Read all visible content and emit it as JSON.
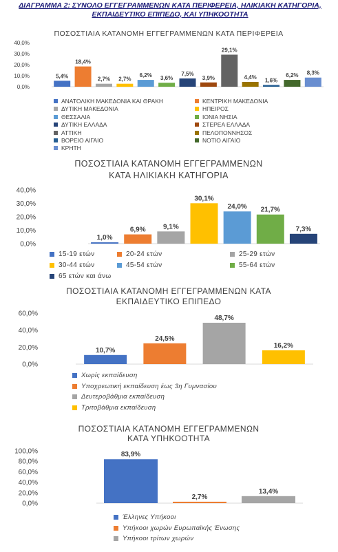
{
  "page": {
    "title": "ΔΙΑΓΡΑΜΜΑ 2: ΣΥΝΟΛΟ ΕΓΓΕΓΡΑΜΜΕΝΩΝ ΚΑΤΑ ΠΕΡΙΦΕΡΕΙΑ, ΗΛΙΚΙΑΚΗ ΚΑΤΗΓΟΡΙΑ, ΕΚΠΑΙΔΕΥΤΙΚΟ ΕΠΙΠΕΔΟ, ΚΑΙ ΥΠΗΚΟΟΤΗΤΑ"
  },
  "chart_data": [
    {
      "id": "region",
      "type": "bar",
      "title": "ΠΟΣΟΣΤΙΑΙΑ ΚΑΤΑΝΟΜΗ ΕΓΓΕΓΡΑΜΜΕΝΩΝ ΚΑΤΑ ΠΕΡΙΦΕΡΕΙΑ",
      "categories": [
        "ΑΝΑΤΟΛΙΚΗ ΜΑΚΕΔΟΝΙΑ ΚΑΙ ΘΡΑΚΗ",
        "ΚΕΝΤΡΙΚΗ ΜΑΚΕΔΟΝΙΑ",
        "ΔΥΤΙΚΗ ΜΑΚΕΔΟΝΙΑ",
        "ΗΠΕΙΡΟΣ",
        "ΘΕΣΣΑΛΙΑ",
        "ΙΟΝΙΑ ΝΗΣΙΑ",
        "ΔΥΤΙΚΗ ΕΛΛΑΔΑ",
        "ΣΤΕΡΕΑ ΕΛΛΑΔΑ",
        "ΑΤΤΙΚΗ",
        "ΠΕΛΟΠΟΝΝΗΣΟΣ",
        "ΒΟΡΕΙΟ ΑΙΓΑΙΟ",
        "ΝΟΤΙΟ ΑΙΓΑΙΟ",
        "ΚΡΗΤΗ"
      ],
      "values": [
        5.4,
        18.4,
        2.7,
        2.7,
        6.2,
        3.6,
        7.5,
        3.9,
        29.1,
        4.4,
        1.6,
        6.2,
        8.3
      ],
      "value_labels": [
        "5,4%",
        "18,4%",
        "2,7%",
        "2,7%",
        "6,2%",
        "3,6%",
        "7,5%",
        "3,9%",
        "29,1%",
        "4,4%",
        "1,6%",
        "6,2%",
        "8,3%"
      ],
      "colors": [
        "#4472c4",
        "#ed7d31",
        "#a5a5a5",
        "#ffc000",
        "#5b9bd5",
        "#70ad47",
        "#264478",
        "#9e480e",
        "#636363",
        "#997300",
        "#255e91",
        "#43682b",
        "#698ed0"
      ],
      "ylim": [
        0,
        40
      ],
      "yticks": [
        0,
        10,
        20,
        30,
        40
      ],
      "ytick_labels": [
        "0,0%",
        "10,0%",
        "20,0%",
        "30,0%",
        "40,0%"
      ],
      "legend_placement": "bottom"
    },
    {
      "id": "age",
      "type": "bar",
      "title": "ΠΟΣΟΣΤΙΑΙΑ ΚΑΤΑΝΟΜΗ ΕΓΓΕΓΡΑΜΜΕΝΩΝ ΚΑΤΑ ΗΛΙΚΙΑΚΗ ΚΑΤΗΓΟΡΙΑ",
      "title_lines": [
        "ΠΟΣΟΣΤΙΑΙΑ ΚΑΤΑΝΟΜΗ ΕΓΓΕΓΡΑΜΜΕΝΩΝ",
        "ΚΑΤΑ ΗΛΙΚΙΑΚΗ ΚΑΤΗΓΟΡΙΑ"
      ],
      "categories": [
        "15-19 ετών",
        "20-24 ετών",
        "25-29 ετών",
        "30-44 ετών",
        "45-54 ετών",
        "55-64 ετών",
        "65 ετών και άνω"
      ],
      "values": [
        1.0,
        6.9,
        9.1,
        30.1,
        24.0,
        21.7,
        7.3
      ],
      "value_labels": [
        "1,0%",
        "6,9%",
        "9,1%",
        "30,1%",
        "24,0%",
        "21,7%",
        "7,3%"
      ],
      "colors": [
        "#4472c4",
        "#ed7d31",
        "#a5a5a5",
        "#ffc000",
        "#5b9bd5",
        "#70ad47",
        "#264478"
      ],
      "ylim": [
        0,
        40
      ],
      "yticks": [
        0,
        10,
        20,
        30,
        40
      ],
      "ytick_labels": [
        "0,0%",
        "10,0%",
        "20,0%",
        "30,0%",
        "40,0%"
      ],
      "legend_placement": "bottom"
    },
    {
      "id": "education",
      "type": "bar",
      "title": "ΠΟΣΟΣΤΙΑΙΑ ΚΑΤΑΝΟΜΗ ΕΓΓΕΓΡΑΜΜΕΝΩΝ ΚΑΤΑ ΕΚΠΑΙΔΕΥΤΙΚΟ ΕΠΙΠΕΔΟ",
      "title_lines": [
        "ΠΟΣΟΣΤΙΑΙΑ ΚΑΤΑΝΟΜΗ ΕΓΓΕΓΡΑΜΜΕΝΩΝ ΚΑΤΑ",
        "ΕΚΠΑΙΔΕΥΤΙΚΟ ΕΠΙΠΕΔΟ"
      ],
      "categories": [
        "Χωρίς εκπαίδευση",
        "Υποχρεωτική εκπαίδευση έως 3η Γυμνασίου",
        "Δευτεροβάθμια εκπαίδευση",
        "Τριτοβάθμια εκπαίδευση"
      ],
      "values": [
        10.7,
        24.5,
        48.7,
        16.2
      ],
      "value_labels": [
        "10,7%",
        "24,5%",
        "48,7%",
        "16,2%"
      ],
      "colors": [
        "#4472c4",
        "#ed7d31",
        "#a5a5a5",
        "#ffc000"
      ],
      "ylim": [
        0,
        60
      ],
      "yticks": [
        0,
        20,
        40,
        60
      ],
      "ytick_labels": [
        "0,0%",
        "20,0%",
        "40,0%",
        "60,0%"
      ],
      "legend_placement": "bottom"
    },
    {
      "id": "citizenship",
      "type": "bar",
      "title": "ΠΟΣΟΣΤΙΑΙΑ ΚΑΤΑΝΟΜΗ ΕΓΓΕΓΡΑΜΜΕΝΩΝ ΚΑΤΑ ΥΠΗΚΟΟΤΗΤΑ",
      "title_lines": [
        "ΠΟΣΟΣΤΙΑΙΑ ΚΑΤΑΝΟΜΗ ΕΓΓΕΓΡΑΜΜΕΝΩΝ",
        "ΚΑΤΑ ΥΠΗΚΟΟΤΗΤΑ"
      ],
      "categories": [
        "Έλληνες Υπήκοοι",
        "Υπήκοοι χωρών Ευρωπαϊκής Ένωσης",
        "Υπήκοοι τρίτων χωρών"
      ],
      "values": [
        83.9,
        2.7,
        13.4
      ],
      "value_labels": [
        "83,9%",
        "2,7%",
        "13,4%"
      ],
      "colors": [
        "#4472c4",
        "#ed7d31",
        "#a5a5a5"
      ],
      "ylim": [
        0,
        100
      ],
      "yticks": [
        0,
        20,
        40,
        60,
        80,
        100
      ],
      "ytick_labels": [
        "0,0%",
        "20,0%",
        "40,0%",
        "60,0%",
        "80,0%",
        "100,0%"
      ],
      "legend_placement": "bottom"
    }
  ]
}
